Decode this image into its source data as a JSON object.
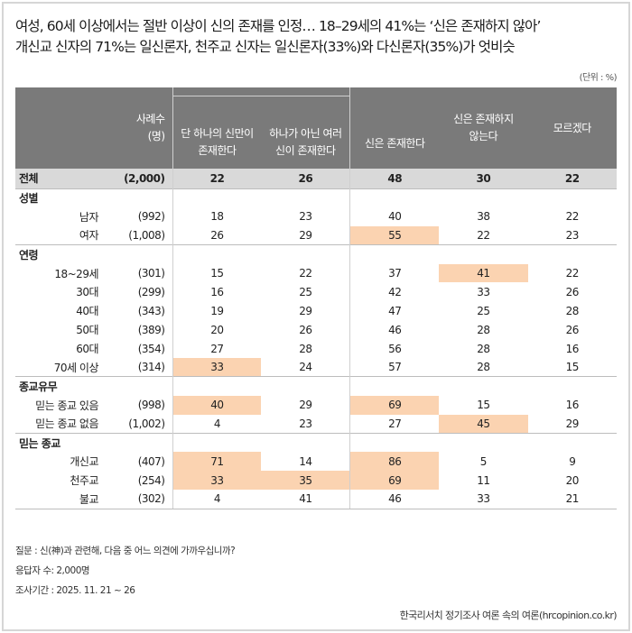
{
  "title": {
    "line1": "여성, 60세 이상에서는 절반 이상이 신의 존재를 인정… 18–29세의 41%는 ‘신은 존재하지 않아’",
    "line2": "개신교 신자의 71%는 일신론자, 천주교 신자는 일신론자(33%)와 다신론자(35%)가 엇비슷"
  },
  "unit": "(단위 : %)",
  "header": {
    "sample": "사례수\n(명)",
    "cols": [
      "단 하나의 신만이\n존재한다",
      "하나가 아닌 여러\n신이 존재한다",
      "신은 존재한다",
      "신은 존재하지\n않는다",
      "모르겠다"
    ]
  },
  "total": {
    "label": "전체",
    "n": "(2,000)",
    "values": [
      "22",
      "26",
      "48",
      "30",
      "22"
    ]
  },
  "groups": [
    {
      "label": "성별",
      "rows": [
        {
          "label": "남자",
          "n": "(992)",
          "values": [
            "18",
            "23",
            "40",
            "38",
            "22"
          ],
          "highlight": []
        },
        {
          "label": "여자",
          "n": "(1,008)",
          "values": [
            "26",
            "29",
            "55",
            "22",
            "23"
          ],
          "highlight": [
            2
          ]
        }
      ]
    },
    {
      "label": "연령",
      "rows": [
        {
          "label": "18~29세",
          "n": "(301)",
          "values": [
            "15",
            "22",
            "37",
            "41",
            "22"
          ],
          "highlight": [
            3
          ]
        },
        {
          "label": "30대",
          "n": "(299)",
          "values": [
            "16",
            "25",
            "42",
            "33",
            "26"
          ],
          "highlight": []
        },
        {
          "label": "40대",
          "n": "(343)",
          "values": [
            "19",
            "29",
            "47",
            "25",
            "28"
          ],
          "highlight": []
        },
        {
          "label": "50대",
          "n": "(389)",
          "values": [
            "20",
            "26",
            "46",
            "28",
            "26"
          ],
          "highlight": []
        },
        {
          "label": "60대",
          "n": "(354)",
          "values": [
            "27",
            "28",
            "56",
            "28",
            "16"
          ],
          "highlight": []
        },
        {
          "label": "70세 이상",
          "n": "(314)",
          "values": [
            "33",
            "24",
            "57",
            "28",
            "15"
          ],
          "highlight": [
            0
          ]
        }
      ]
    },
    {
      "label": "종교유무",
      "rows": [
        {
          "label": "믿는 종교 있음",
          "n": "(998)",
          "values": [
            "40",
            "29",
            "69",
            "15",
            "16"
          ],
          "highlight": [
            0,
            2
          ]
        },
        {
          "label": "믿는 종교 없음",
          "n": "(1,002)",
          "values": [
            "4",
            "23",
            "27",
            "45",
            "29"
          ],
          "highlight": [
            3
          ]
        }
      ]
    },
    {
      "label": "믿는 종교",
      "rows": [
        {
          "label": "개신교",
          "n": "(407)",
          "values": [
            "71",
            "14",
            "86",
            "5",
            "9"
          ],
          "highlight": [
            0,
            2
          ]
        },
        {
          "label": "천주교",
          "n": "(254)",
          "values": [
            "33",
            "35",
            "69",
            "11",
            "20"
          ],
          "highlight": [
            0,
            1,
            2
          ]
        },
        {
          "label": "불교",
          "n": "(302)",
          "values": [
            "4",
            "41",
            "46",
            "33",
            "21"
          ],
          "highlight": []
        }
      ]
    }
  ],
  "notes": {
    "question": "질문 : 신(神)과 관련해, 다음 중 어느 의견에 가까우십니까?",
    "respondents": "응답자 수: 2,000명",
    "period": "조사기간 : 2025. 11. 21 ~ 26"
  },
  "source": "한국리서치 정기조사 여론 속의 여론(hrcopinion.co.kr)",
  "colors": {
    "header": "#7a7a7a",
    "highlight": "#fbd3b1",
    "total": "#d9d9d9"
  }
}
